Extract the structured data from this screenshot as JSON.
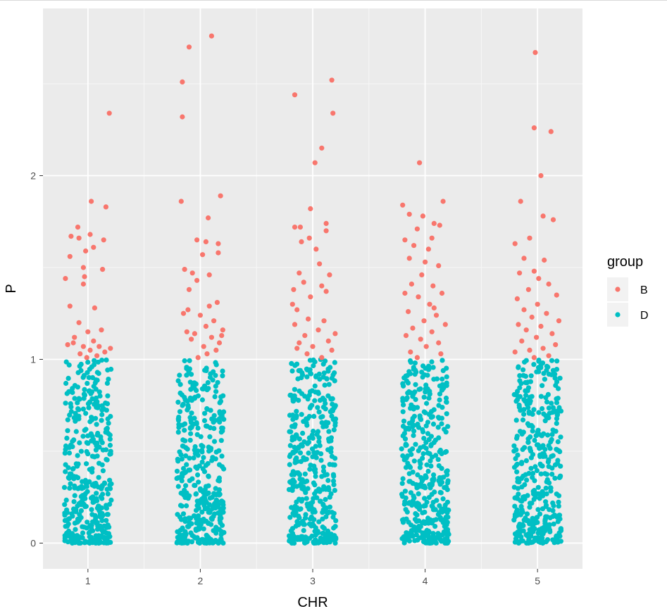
{
  "chart_data": {
    "type": "scatter",
    "xlabel": "CHR",
    "ylabel": "P",
    "x_categories": [
      "1",
      "2",
      "3",
      "4",
      "5"
    ],
    "xlim": [
      0.6,
      5.4
    ],
    "ylim": [
      -0.14,
      2.91
    ],
    "y_ticks": [
      0,
      1,
      2
    ],
    "grid": true,
    "background": "#ebebeb",
    "legend": {
      "title": "group",
      "position": "right",
      "entries": [
        {
          "label": "B",
          "color": "#f8766d"
        },
        {
          "label": "D",
          "color": "#00bfc4"
        }
      ]
    },
    "series": [
      {
        "name": "B",
        "color": "#f8766d",
        "points": [
          [
            1.19,
            2.34
          ],
          [
            1.03,
            1.86
          ],
          [
            1.16,
            1.83
          ],
          [
            0.91,
            1.72
          ],
          [
            0.85,
            1.67
          ],
          [
            0.92,
            1.66
          ],
          [
            1.02,
            1.68
          ],
          [
            1.14,
            1.65
          ],
          [
            1.05,
            1.61
          ],
          [
            0.98,
            1.59
          ],
          [
            0.84,
            1.56
          ],
          [
            0.96,
            1.5
          ],
          [
            1.13,
            1.49
          ],
          [
            0.8,
            1.44
          ],
          [
            0.97,
            1.45
          ],
          [
            0.96,
            1.41
          ],
          [
            0.84,
            1.29
          ],
          [
            1.06,
            1.28
          ],
          [
            0.92,
            1.2
          ],
          [
            1.12,
            1.16
          ],
          [
            1.0,
            1.15
          ],
          [
            0.88,
            1.12
          ],
          [
            1.05,
            1.1
          ],
          [
            0.96,
            1.07
          ],
          [
            0.82,
            1.08
          ],
          [
            1.1,
            1.07
          ],
          [
            1.02,
            1.05
          ],
          [
            0.93,
            1.03
          ],
          [
            1.15,
            1.04
          ],
          [
            0.99,
            1.01
          ],
          [
            1.2,
            1.06
          ],
          [
            0.87,
            1.09
          ],
          [
            1.08,
            1.02
          ],
          [
            2.1,
            2.76
          ],
          [
            1.9,
            2.7
          ],
          [
            1.84,
            2.51
          ],
          [
            1.84,
            2.32
          ],
          [
            1.83,
            1.86
          ],
          [
            2.18,
            1.89
          ],
          [
            2.07,
            1.77
          ],
          [
            1.97,
            1.65
          ],
          [
            2.05,
            1.64
          ],
          [
            2.16,
            1.63
          ],
          [
            2.02,
            1.57
          ],
          [
            2.16,
            1.58
          ],
          [
            1.86,
            1.49
          ],
          [
            1.93,
            1.47
          ],
          [
            2.08,
            1.46
          ],
          [
            1.97,
            1.43
          ],
          [
            1.9,
            1.38
          ],
          [
            2.15,
            1.31
          ],
          [
            1.85,
            1.25
          ],
          [
            2.0,
            1.24
          ],
          [
            2.12,
            1.21
          ],
          [
            2.05,
            1.18
          ],
          [
            2.2,
            1.16
          ],
          [
            1.88,
            1.15
          ],
          [
            1.95,
            1.14
          ],
          [
            2.1,
            1.12
          ],
          [
            2.17,
            1.09
          ],
          [
            2.03,
            1.07
          ],
          [
            1.92,
            1.11
          ],
          [
            2.14,
            1.05
          ],
          [
            2.06,
            1.03
          ],
          [
            1.98,
            1.01
          ],
          [
            2.19,
            1.13
          ],
          [
            2.08,
            1.29
          ],
          [
            1.89,
            1.27
          ],
          [
            3.17,
            2.52
          ],
          [
            2.84,
            2.44
          ],
          [
            3.18,
            2.34
          ],
          [
            3.08,
            2.15
          ],
          [
            2.98,
            1.82
          ],
          [
            2.89,
            1.72
          ],
          [
            2.84,
            1.72
          ],
          [
            3.12,
            1.74
          ],
          [
            2.97,
            1.66
          ],
          [
            3.12,
            1.7
          ],
          [
            2.9,
            1.64
          ],
          [
            3.03,
            1.6
          ],
          [
            3.06,
            1.52
          ],
          [
            2.88,
            1.47
          ],
          [
            3.15,
            1.46
          ],
          [
            3.08,
            1.4
          ],
          [
            2.92,
            1.42
          ],
          [
            2.83,
            1.38
          ],
          [
            3.12,
            1.37
          ],
          [
            2.98,
            1.34
          ],
          [
            2.82,
            1.3
          ],
          [
            2.86,
            1.27
          ],
          [
            2.96,
            1.22
          ],
          [
            3.1,
            1.21
          ],
          [
            2.84,
            1.19
          ],
          [
            3.05,
            1.16
          ],
          [
            3.2,
            1.14
          ],
          [
            2.93,
            1.13
          ],
          [
            3.14,
            1.1
          ],
          [
            2.88,
            1.09
          ],
          [
            3.0,
            1.07
          ],
          [
            3.17,
            1.05
          ],
          [
            2.95,
            1.03
          ],
          [
            3.08,
            1.01
          ],
          [
            2.86,
            1.06
          ],
          [
            3.02,
            2.07
          ],
          [
            3.95,
            2.07
          ],
          [
            3.8,
            1.84
          ],
          [
            4.16,
            1.86
          ],
          [
            3.86,
            1.79
          ],
          [
            3.98,
            1.78
          ],
          [
            4.08,
            1.74
          ],
          [
            4.13,
            1.73
          ],
          [
            3.93,
            1.71
          ],
          [
            3.82,
            1.65
          ],
          [
            4.06,
            1.66
          ],
          [
            3.9,
            1.62
          ],
          [
            4.03,
            1.6
          ],
          [
            3.86,
            1.55
          ],
          [
            4.0,
            1.53
          ],
          [
            4.12,
            1.51
          ],
          [
            3.97,
            1.46
          ],
          [
            3.88,
            1.41
          ],
          [
            4.07,
            1.4
          ],
          [
            3.82,
            1.36
          ],
          [
            4.15,
            1.36
          ],
          [
            3.94,
            1.34
          ],
          [
            4.04,
            1.3
          ],
          [
            3.85,
            1.26
          ],
          [
            4.1,
            1.24
          ],
          [
            3.99,
            1.21
          ],
          [
            4.18,
            1.19
          ],
          [
            3.89,
            1.17
          ],
          [
            4.06,
            1.15
          ],
          [
            3.83,
            1.13
          ],
          [
            3.96,
            1.11
          ],
          [
            4.12,
            1.09
          ],
          [
            4.01,
            1.07
          ],
          [
            3.87,
            1.04
          ],
          [
            4.14,
            1.03
          ],
          [
            3.93,
            1.01
          ],
          [
            4.08,
            1.28
          ],
          [
            4.98,
            2.67
          ],
          [
            4.97,
            2.26
          ],
          [
            5.12,
            2.24
          ],
          [
            5.03,
            2.0
          ],
          [
            4.85,
            1.86
          ],
          [
            5.05,
            1.78
          ],
          [
            5.14,
            1.76
          ],
          [
            4.93,
            1.66
          ],
          [
            4.8,
            1.63
          ],
          [
            4.88,
            1.55
          ],
          [
            5.06,
            1.54
          ],
          [
            4.97,
            1.48
          ],
          [
            4.84,
            1.47
          ],
          [
            5.1,
            1.41
          ],
          [
            4.92,
            1.38
          ],
          [
            5.17,
            1.35
          ],
          [
            4.82,
            1.33
          ],
          [
            5.0,
            1.3
          ],
          [
            4.88,
            1.27
          ],
          [
            5.08,
            1.25
          ],
          [
            4.95,
            1.23
          ],
          [
            5.19,
            1.21
          ],
          [
            4.83,
            1.19
          ],
          [
            5.03,
            1.18
          ],
          [
            4.9,
            1.16
          ],
          [
            5.13,
            1.14
          ],
          [
            4.99,
            1.12
          ],
          [
            4.86,
            1.1
          ],
          [
            5.16,
            1.08
          ],
          [
            5.05,
            1.06
          ],
          [
            4.93,
            1.05
          ],
          [
            4.8,
            1.04
          ],
          [
            5.1,
            1.02
          ],
          [
            4.97,
            1.01
          ],
          [
            5.01,
            1.44
          ]
        ]
      },
      {
        "name": "D",
        "color": "#00bfc4",
        "description": "approximately 400 points per CHR, uniformly jittered across x ±0.21 of each category and spanning P from 0 to 1, densest below 0.3"
      }
    ]
  }
}
